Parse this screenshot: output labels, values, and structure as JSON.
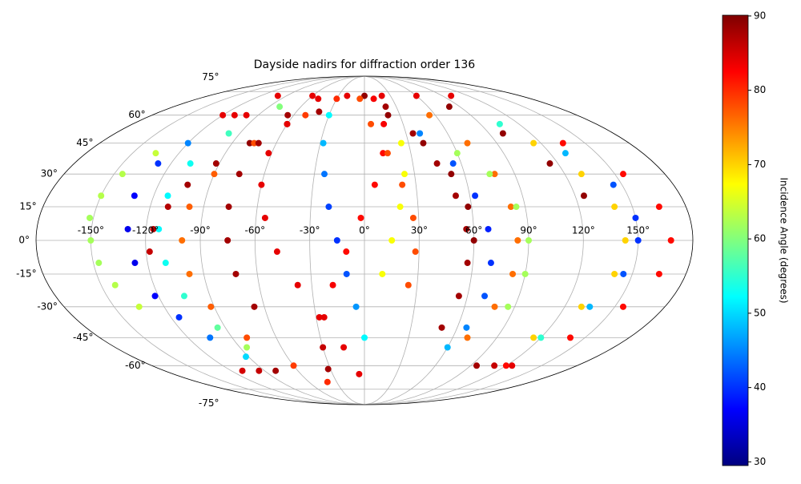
{
  "chart_data": {
    "type": "scatter",
    "projection": "mollweide",
    "colormap": "jet",
    "title": "Dayside nadirs for diffraction order 136",
    "colorbar_label": "Incidence Angle (degrees)",
    "clim": [
      29.5,
      90.1
    ],
    "cticks": [
      30,
      40,
      50,
      60,
      70,
      80,
      90
    ],
    "xlim": [
      -180,
      180
    ],
    "ylim": [
      -90,
      90
    ],
    "grid": true,
    "xticks": [
      {
        "value": -150,
        "label": "-150°"
      },
      {
        "value": -120,
        "label": "-120°"
      },
      {
        "value": -90,
        "label": "-90°"
      },
      {
        "value": -60,
        "label": "-60°"
      },
      {
        "value": -30,
        "label": "-30°"
      },
      {
        "value": 0,
        "label": "0°"
      },
      {
        "value": 30,
        "label": "30°"
      },
      {
        "value": 60,
        "label": "60°"
      },
      {
        "value": 90,
        "label": "90°"
      },
      {
        "value": 120,
        "label": "120°"
      },
      {
        "value": 150,
        "label": "150°"
      }
    ],
    "yticks": [
      {
        "value": -75,
        "label": "-75°"
      },
      {
        "value": -60,
        "label": "-60°"
      },
      {
        "value": -45,
        "label": "-45°"
      },
      {
        "value": -30,
        "label": "-30°"
      },
      {
        "value": -15,
        "label": "-15°"
      },
      {
        "value": 0,
        "label": "0°"
      },
      {
        "value": 15,
        "label": "15°"
      },
      {
        "value": 30,
        "label": "30°"
      },
      {
        "value": 45,
        "label": "45°"
      },
      {
        "value": 60,
        "label": "60°"
      },
      {
        "value": 75,
        "label": "75°"
      }
    ],
    "series": [
      {
        "x": [
          -135,
          -145,
          -150,
          -152,
          -150,
          -147,
          -142,
          -135
        ],
        "y": [
          40,
          30,
          20,
          10,
          0,
          -10,
          -20,
          -30
        ],
        "c": [
          64,
          63,
          63,
          62,
          62,
          62,
          63,
          64
        ]
      },
      {
        "x": [
          -120,
          -128,
          -131,
          -130,
          -127,
          -122,
          -115,
          -105,
          -92
        ],
        "y": [
          45,
          35,
          20,
          5,
          -10,
          -25,
          -35,
          -45,
          -55
        ],
        "c": [
          45,
          40,
          37,
          36,
          36,
          37,
          40,
          44,
          50
        ]
      },
      {
        "x": [
          -80,
          -98,
          -108,
          -112,
          -113,
          -110,
          -105,
          -95,
          -85
        ],
        "y": [
          65,
          50,
          35,
          20,
          5,
          -10,
          -25,
          -40,
          -50
        ],
        "c": [
          60,
          56,
          53,
          52,
          52,
          53,
          55,
          58,
          62
        ]
      },
      {
        "x": [
          -40,
          -60,
          -78,
          -92,
          -103,
          -110,
          -116,
          -118
        ],
        "y": [
          62,
          55,
          45,
          35,
          25,
          15,
          5,
          -5
        ],
        "c": [
          88,
          89,
          89,
          88,
          88,
          87,
          87,
          86
        ]
      },
      {
        "x": [
          -30,
          -50,
          -75,
          -90,
          -98,
          -100,
          -98,
          -92,
          -80,
          -60,
          -40
        ],
        "y": [
          70,
          60,
          45,
          30,
          15,
          0,
          -15,
          -30,
          -45,
          -60,
          -70
        ],
        "c": [
          80,
          79,
          78,
          77,
          77,
          76,
          76,
          77,
          78,
          79,
          80
        ]
      },
      {
        "x": [
          -65,
          -72,
          -75,
          -76,
          -75,
          -72,
          -66
        ],
        "y": [
          60,
          45,
          30,
          15,
          0,
          -15,
          -30
        ],
        "c": [
          88,
          88,
          88,
          88,
          88,
          88,
          88
        ]
      },
      {
        "x": [
          -50,
          -60,
          -62,
          -60,
          -55,
          -48,
          -38,
          -28,
          -15,
          -5
        ],
        "y": [
          70,
          55,
          40,
          25,
          10,
          -5,
          -20,
          -35,
          -50,
          -65
        ],
        "c": [
          84,
          84,
          84,
          84,
          84,
          84,
          84,
          84,
          84,
          84
        ]
      },
      {
        "x": [
          -30,
          -28,
          -24,
          -20,
          -15,
          -10,
          -5,
          0
        ],
        "y": [
          60,
          45,
          30,
          15,
          0,
          -15,
          -30,
          -45
        ],
        "c": [
          52,
          48,
          44,
          41,
          40,
          42,
          46,
          52
        ]
      },
      {
        "x": [
          10,
          15,
          12,
          6,
          -2,
          -10,
          -18,
          -25,
          -30,
          -32
        ],
        "y": [
          70,
          55,
          40,
          25,
          10,
          -5,
          -20,
          -35,
          -50,
          -62
        ],
        "c": [
          83,
          83,
          82,
          82,
          82,
          82,
          83,
          84,
          86,
          88
        ]
      },
      {
        "x": [
          0,
          20,
          40,
          52,
          58,
          60
        ],
        "y": [
          72,
          60,
          45,
          30,
          15,
          0
        ],
        "c": [
          89,
          89,
          89,
          89,
          89,
          89
        ]
      },
      {
        "x": [
          -5,
          5,
          15,
          22,
          27,
          28,
          25
        ],
        "y": [
          70,
          55,
          40,
          25,
          10,
          -5,
          -20
        ],
        "c": [
          78,
          78,
          78,
          78,
          78,
          78,
          78
        ]
      },
      {
        "x": [
          25,
          24,
          20,
          15,
          10
        ],
        "y": [
          45,
          30,
          15,
          0,
          -15
        ],
        "c": [
          67,
          67,
          67,
          67,
          67
        ]
      },
      {
        "x": [
          20,
          35,
          45,
          52,
          56,
          57,
          55,
          50
        ],
        "y": [
          65,
          50,
          35,
          20,
          5,
          -10,
          -25,
          -40
        ],
        "c": [
          88,
          88,
          88,
          88,
          88,
          88,
          88,
          88
        ]
      },
      {
        "x": [
          40,
          55,
          63,
          68,
          70,
          70,
          66,
          60
        ],
        "y": [
          50,
          35,
          20,
          5,
          -10,
          -25,
          -40,
          -50
        ],
        "c": [
          45,
          42,
          40,
          39,
          40,
          42,
          45,
          48
        ]
      },
      {
        "x": [
          55,
          70,
          78,
          82,
          84,
          83,
          78,
          70
        ],
        "y": [
          60,
          45,
          30,
          15,
          0,
          -15,
          -30,
          -45
        ],
        "c": [
          76,
          76,
          76,
          76,
          76,
          76,
          76,
          76
        ]
      },
      {
        "x": [
          60,
          75,
          85,
          90,
          90,
          86
        ],
        "y": [
          40,
          30,
          15,
          0,
          -15,
          -30
        ],
        "c": [
          62,
          62,
          62,
          62,
          62,
          62
        ]
      },
      {
        "x": [
          105,
          130,
          145,
          150,
          150,
          145,
          135,
          120
        ],
        "y": [
          55,
          40,
          25,
          10,
          0,
          -15,
          -30,
          -45
        ],
        "c": [
          55,
          48,
          42,
          40,
          40,
          42,
          48,
          55
        ]
      },
      {
        "x": [
          135,
          155,
          165,
          168,
          165,
          155,
          140,
          120
        ],
        "y": [
          45,
          30,
          15,
          0,
          -15,
          -30,
          -45,
          -60
        ],
        "c": [
          82,
          82,
          82,
          82,
          82,
          82,
          82,
          82
        ]
      },
      {
        "x": [
          80,
          100,
          115,
          125
        ],
        "y": [
          65,
          50,
          35,
          20
        ],
        "c": [
          89,
          89,
          89,
          89
        ]
      },
      {
        "x": [
          115,
          130,
          140,
          143,
          140,
          130,
          115
        ],
        "y": [
          45,
          30,
          15,
          0,
          -15,
          -30,
          -45
        ],
        "c": [
          70,
          70,
          70,
          70,
          70,
          70,
          70
        ]
      },
      {
        "x": [
          -100,
          -60,
          -20,
          20,
          60,
          100
        ],
        "y": [
          72,
          72,
          72,
          72,
          72,
          72
        ],
        "c": [
          84,
          84,
          84,
          84,
          84,
          84
        ]
      },
      {
        "x": [
          -110,
          -95,
          -80,
          95,
          110,
          125
        ],
        "y": [
          -63,
          -63,
          -63,
          -60,
          -60,
          -60
        ],
        "c": [
          85,
          86,
          88,
          88,
          86,
          84
        ]
      },
      {
        "x": [
          -120,
          -110,
          -100
        ],
        "y": [
          60,
          60,
          60
        ],
        "c": [
          84,
          84,
          84
        ]
      }
    ]
  }
}
